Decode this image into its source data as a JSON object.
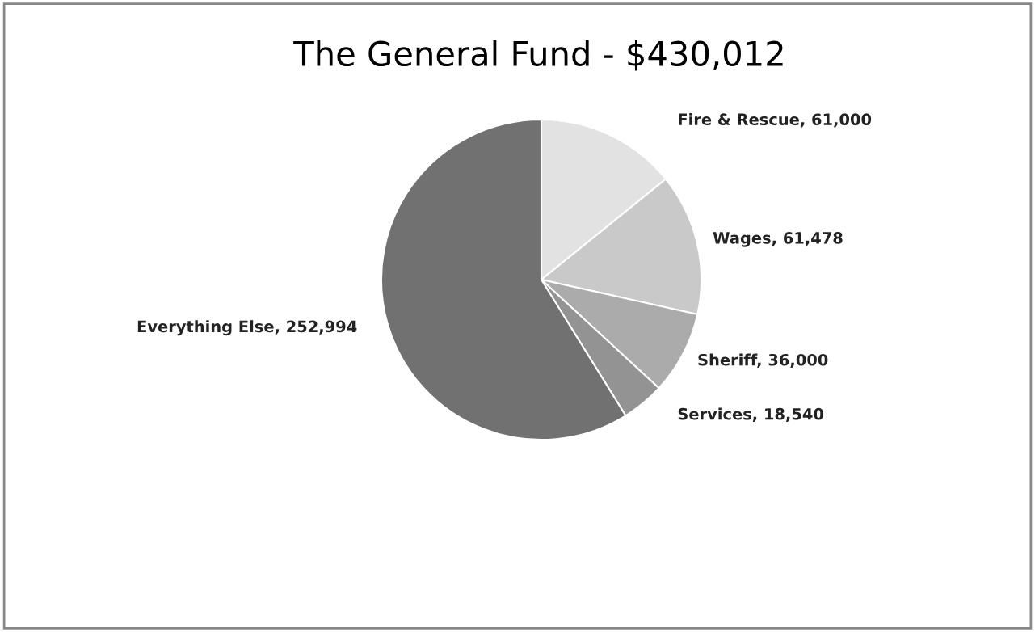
{
  "chart_data": {
    "type": "pie",
    "title": "The General Fund - $430,012",
    "categories": [
      "Fire & Rescue",
      "Wages",
      "Sheriff",
      "Services",
      "Everything Else"
    ],
    "value_labels": [
      "61,000",
      "61,478",
      "36,000",
      "18,540",
      "252,994"
    ],
    "values": [
      61000,
      61478,
      36000,
      18540,
      252994
    ],
    "colors": [
      "#e2e2e2",
      "#c9c9c9",
      "#ababab",
      "#939393",
      "#717171"
    ],
    "legend": false
  }
}
